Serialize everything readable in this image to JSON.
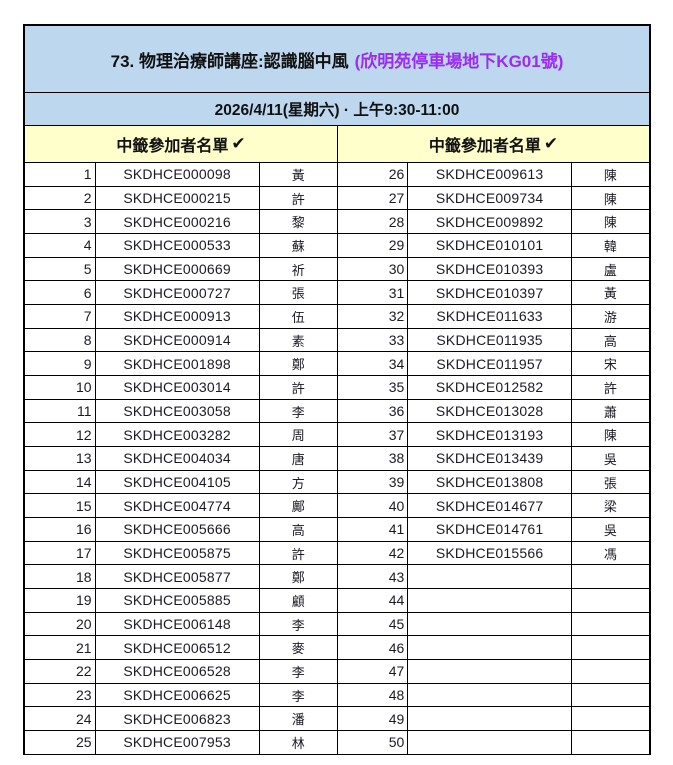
{
  "colors": {
    "header_bg": "#BDD7EE",
    "list_header_bg": "#FFFFCC",
    "location_text": "#9B2BF2",
    "border": "#000000"
  },
  "header": {
    "title_main": "73. 物理治療師講座:認識腦中風",
    "title_location": "(欣明苑停車場地下KG01號)",
    "datetime": "2026/4/11(星期六) · 上午9:30-11:00"
  },
  "list_header": {
    "label": "中籤參加者名單",
    "check_icon": "✔"
  },
  "table": {
    "left": [
      {
        "num": "1",
        "code": "SKDHCE000098",
        "name": "黃"
      },
      {
        "num": "2",
        "code": "SKDHCE000215",
        "name": "許"
      },
      {
        "num": "3",
        "code": "SKDHCE000216",
        "name": "黎"
      },
      {
        "num": "4",
        "code": "SKDHCE000533",
        "name": "蘇"
      },
      {
        "num": "5",
        "code": "SKDHCE000669",
        "name": "祈"
      },
      {
        "num": "6",
        "code": "SKDHCE000727",
        "name": "張"
      },
      {
        "num": "7",
        "code": "SKDHCE000913",
        "name": "伍"
      },
      {
        "num": "8",
        "code": "SKDHCE000914",
        "name": "素"
      },
      {
        "num": "9",
        "code": "SKDHCE001898",
        "name": "鄭"
      },
      {
        "num": "10",
        "code": "SKDHCE003014",
        "name": "許"
      },
      {
        "num": "11",
        "code": "SKDHCE003058",
        "name": "李"
      },
      {
        "num": "12",
        "code": "SKDHCE003282",
        "name": "周"
      },
      {
        "num": "13",
        "code": "SKDHCE004034",
        "name": "唐"
      },
      {
        "num": "14",
        "code": "SKDHCE004105",
        "name": "方"
      },
      {
        "num": "15",
        "code": "SKDHCE004774",
        "name": "鄺"
      },
      {
        "num": "16",
        "code": "SKDHCE005666",
        "name": "高"
      },
      {
        "num": "17",
        "code": "SKDHCE005875",
        "name": "許"
      },
      {
        "num": "18",
        "code": "SKDHCE005877",
        "name": "鄭"
      },
      {
        "num": "19",
        "code": "SKDHCE005885",
        "name": "顧"
      },
      {
        "num": "20",
        "code": "SKDHCE006148",
        "name": "李"
      },
      {
        "num": "21",
        "code": "SKDHCE006512",
        "name": "麥"
      },
      {
        "num": "22",
        "code": "SKDHCE006528",
        "name": "李"
      },
      {
        "num": "23",
        "code": "SKDHCE006625",
        "name": "李"
      },
      {
        "num": "24",
        "code": "SKDHCE006823",
        "name": "潘"
      },
      {
        "num": "25",
        "code": "SKDHCE007953",
        "name": "林"
      }
    ],
    "right": [
      {
        "num": "26",
        "code": "SKDHCE009613",
        "name": "陳"
      },
      {
        "num": "27",
        "code": "SKDHCE009734",
        "name": "陳"
      },
      {
        "num": "28",
        "code": "SKDHCE009892",
        "name": "陳"
      },
      {
        "num": "29",
        "code": "SKDHCE010101",
        "name": "韓"
      },
      {
        "num": "30",
        "code": "SKDHCE010393",
        "name": "盧"
      },
      {
        "num": "31",
        "code": "SKDHCE010397",
        "name": "黃"
      },
      {
        "num": "32",
        "code": "SKDHCE011633",
        "name": "游"
      },
      {
        "num": "33",
        "code": "SKDHCE011935",
        "name": "高"
      },
      {
        "num": "34",
        "code": "SKDHCE011957",
        "name": "宋"
      },
      {
        "num": "35",
        "code": "SKDHCE012582",
        "name": "許"
      },
      {
        "num": "36",
        "code": "SKDHCE013028",
        "name": "蕭"
      },
      {
        "num": "37",
        "code": "SKDHCE013193",
        "name": "陳"
      },
      {
        "num": "38",
        "code": "SKDHCE013439",
        "name": "吳"
      },
      {
        "num": "39",
        "code": "SKDHCE013808",
        "name": "張"
      },
      {
        "num": "40",
        "code": "SKDHCE014677",
        "name": "梁"
      },
      {
        "num": "41",
        "code": "SKDHCE014761",
        "name": "吳"
      },
      {
        "num": "42",
        "code": "SKDHCE015566",
        "name": "馮"
      },
      {
        "num": "43",
        "code": "",
        "name": ""
      },
      {
        "num": "44",
        "code": "",
        "name": ""
      },
      {
        "num": "45",
        "code": "",
        "name": ""
      },
      {
        "num": "46",
        "code": "",
        "name": ""
      },
      {
        "num": "47",
        "code": "",
        "name": ""
      },
      {
        "num": "48",
        "code": "",
        "name": ""
      },
      {
        "num": "49",
        "code": "",
        "name": ""
      },
      {
        "num": "50",
        "code": "",
        "name": ""
      }
    ]
  }
}
